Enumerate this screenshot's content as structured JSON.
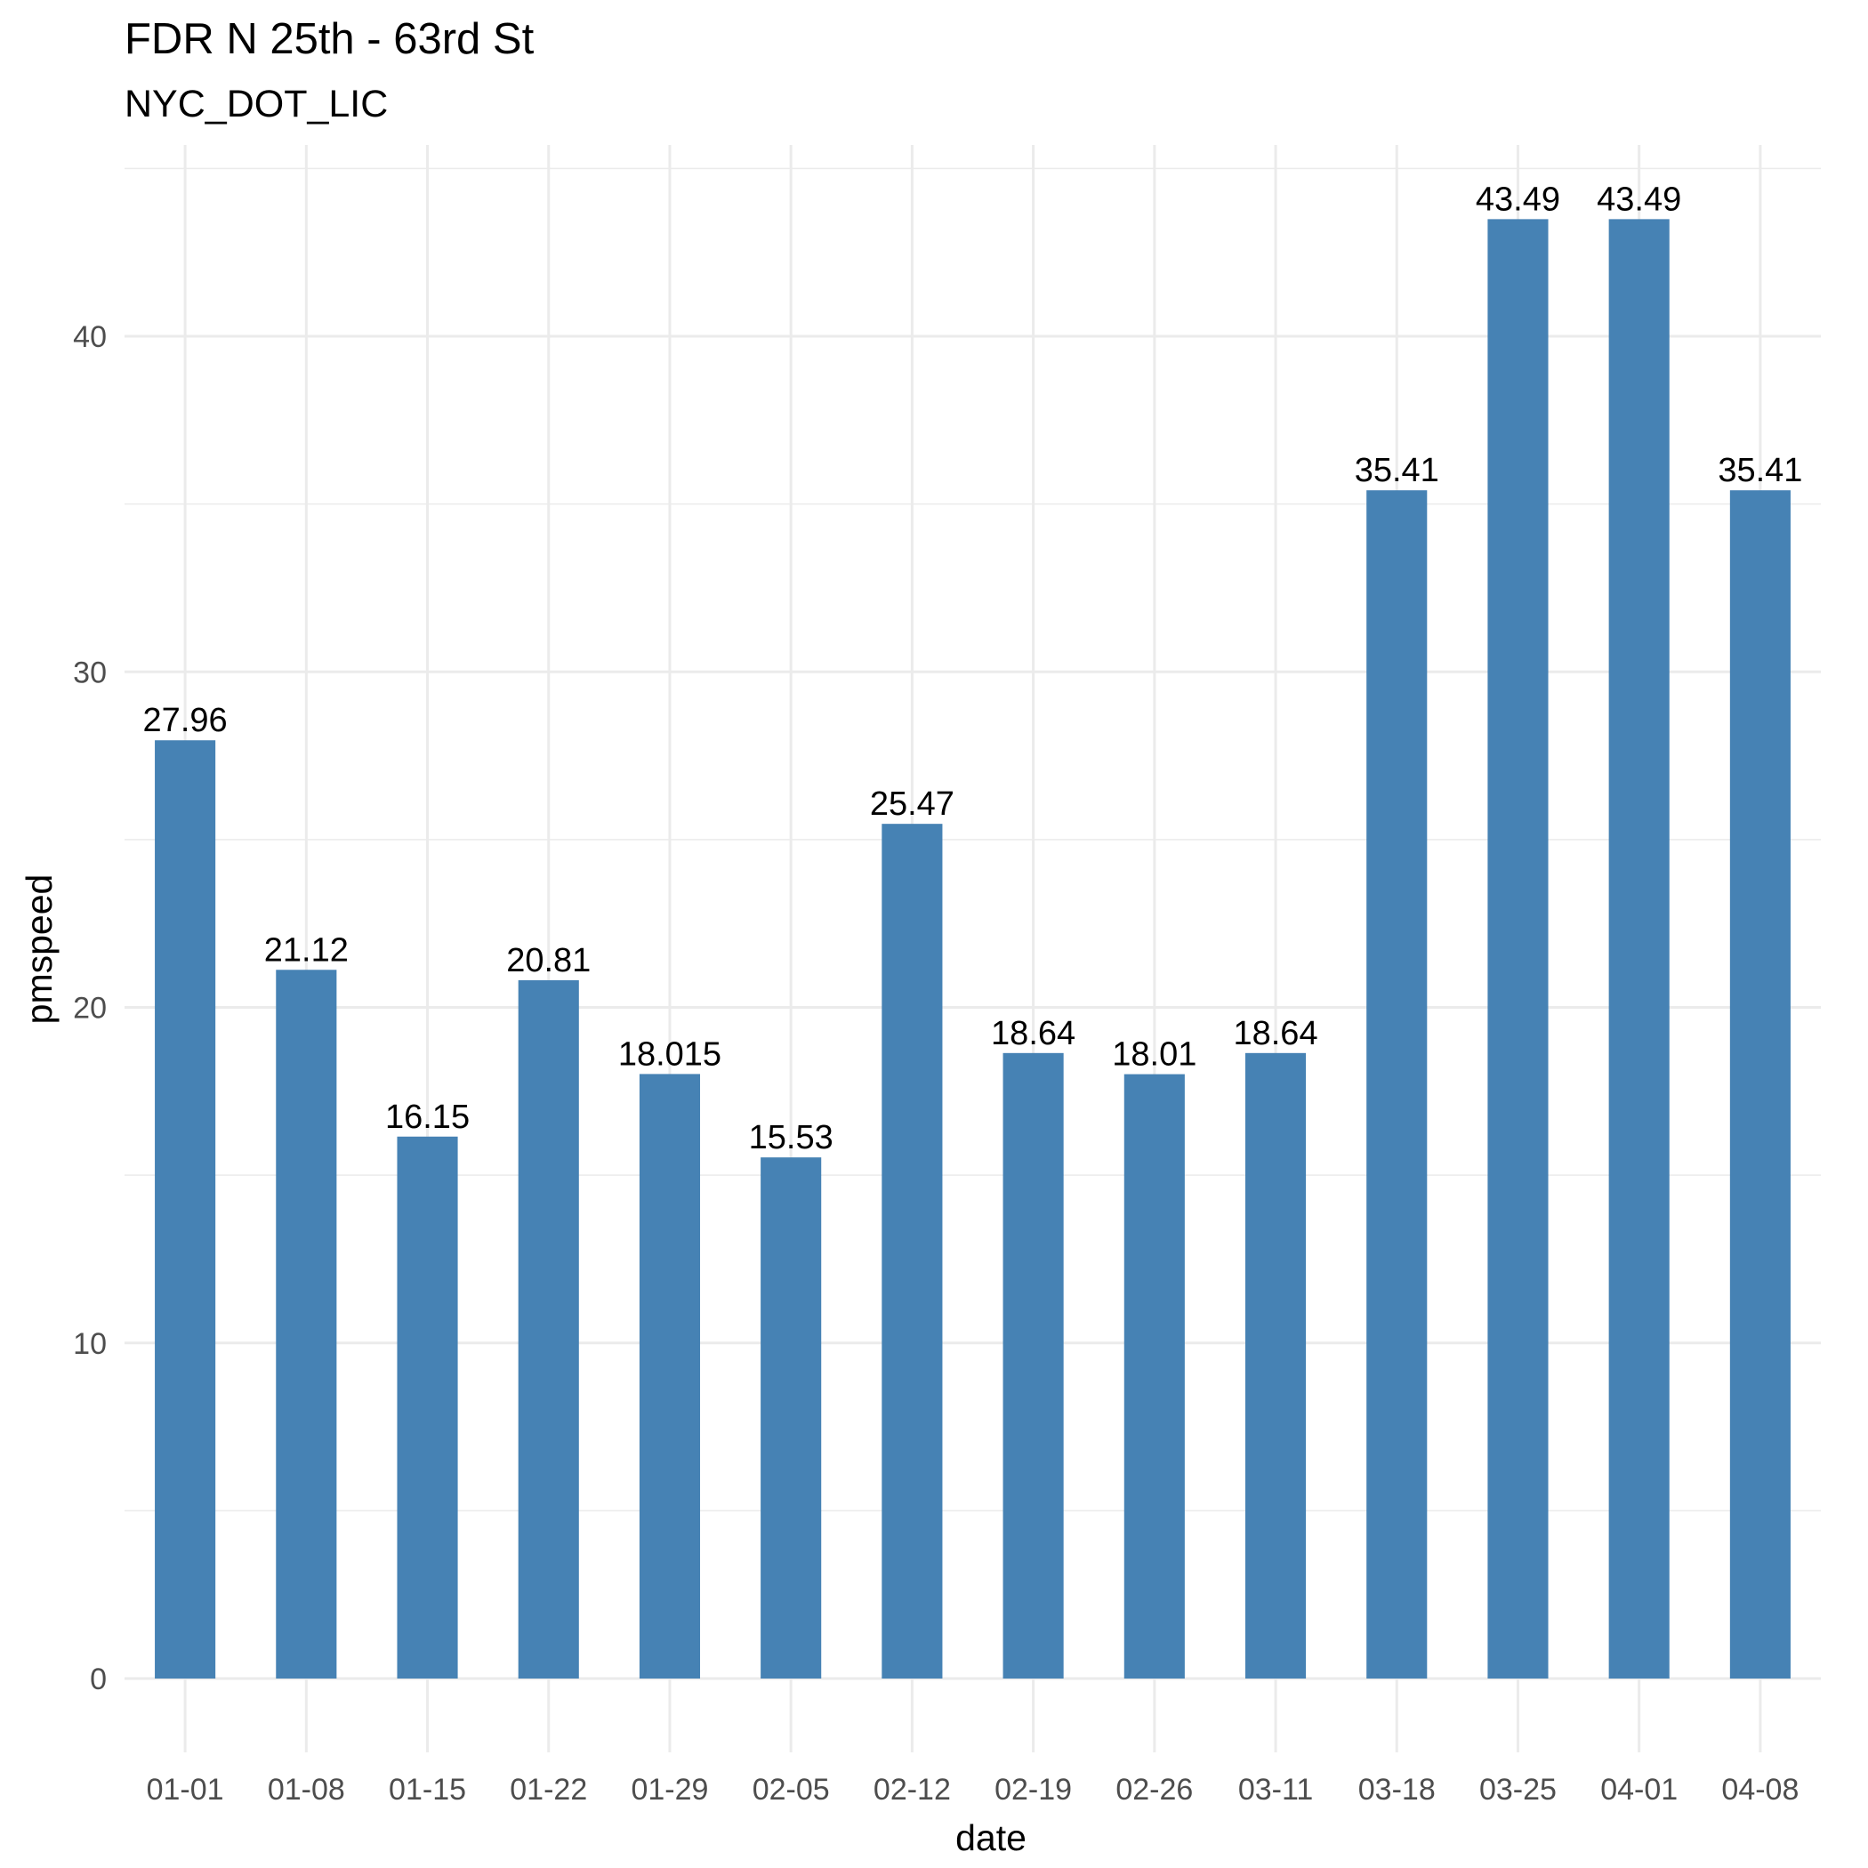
{
  "chart_data": {
    "type": "bar",
    "title": "FDR N 25th - 63rd St",
    "subtitle": "NYC_DOT_LIC",
    "xlabel": "date",
    "ylabel": "pmspeed",
    "categories": [
      "01-01",
      "01-08",
      "01-15",
      "01-22",
      "01-29",
      "02-05",
      "02-12",
      "02-19",
      "02-26",
      "03-11",
      "03-18",
      "03-25",
      "04-01",
      "04-08"
    ],
    "values": [
      27.96,
      21.12,
      16.15,
      20.81,
      18.015,
      15.53,
      25.47,
      18.64,
      18.01,
      18.64,
      35.41,
      43.49,
      43.49,
      35.41
    ],
    "data_labels": [
      "27.96",
      "21.12",
      "16.15",
      "20.81",
      "18.015",
      "15.53",
      "25.47",
      "18.64",
      "18.01",
      "18.64",
      "35.41",
      "43.49",
      "43.49",
      "35.41"
    ],
    "yticks": [
      0,
      10,
      20,
      30,
      40
    ],
    "ylim": [
      -2.2,
      45.7
    ],
    "grid": true,
    "legend": "none",
    "bar_color": "#4682B4",
    "grid_color": "#EBEBEB"
  }
}
